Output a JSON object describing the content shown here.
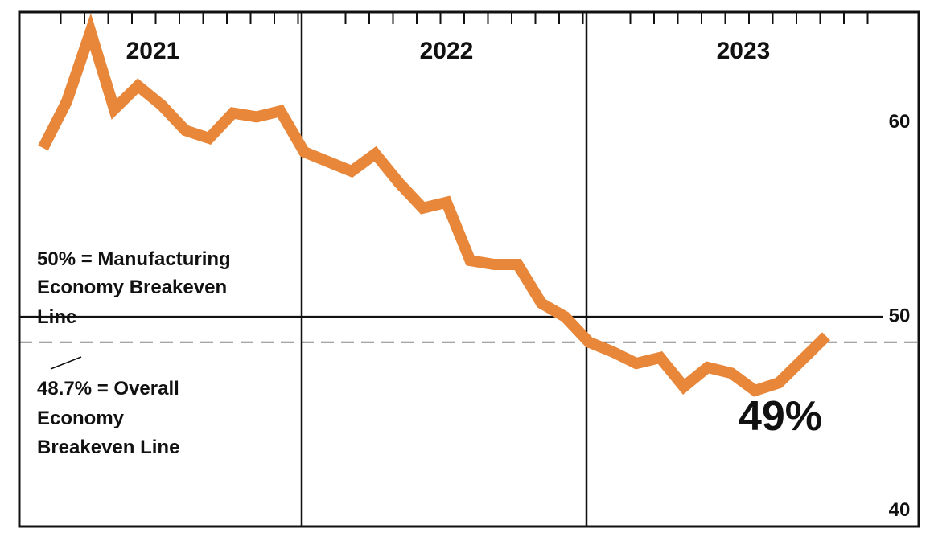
{
  "chart_data": {
    "type": "line",
    "year_labels": [
      "2021",
      "2022",
      "2023"
    ],
    "y_ticks": [
      {
        "value": 60,
        "label": "60"
      },
      {
        "value": 50,
        "label": "50"
      },
      {
        "value": 40,
        "label": "40"
      }
    ],
    "ylim": [
      39.2,
      65.7
    ],
    "xlim": [
      "2021-01",
      "2023-12"
    ],
    "grid": false,
    "series": [
      {
        "color": "#E8873A",
        "x": [
          "2021-01",
          "2021-02",
          "2021-03",
          "2021-04",
          "2021-05",
          "2021-06",
          "2021-07",
          "2021-08",
          "2021-09",
          "2021-10",
          "2021-11",
          "2021-12",
          "2022-01",
          "2022-02",
          "2022-03",
          "2022-04",
          "2022-05",
          "2022-06",
          "2022-07",
          "2022-08",
          "2022-09",
          "2022-10",
          "2022-11",
          "2022-12",
          "2023-01",
          "2023-02",
          "2023-03",
          "2023-04",
          "2023-05",
          "2023-06",
          "2023-07",
          "2023-08",
          "2023-09"
        ],
        "values": [
          58.7,
          61.1,
          64.7,
          60.7,
          61.9,
          60.9,
          59.6,
          59.2,
          60.5,
          60.3,
          60.6,
          58.5,
          58.0,
          57.5,
          58.4,
          56.9,
          55.6,
          55.9,
          52.9,
          52.7,
          52.7,
          50.7,
          50.0,
          48.7,
          48.2,
          47.6,
          47.9,
          46.4,
          47.4,
          47.1,
          46.2,
          46.6,
          47.8
        ]
      }
    ],
    "end_point": {
      "x": "2023-10",
      "y": 49.0,
      "label": "49%"
    },
    "reference_lines": [
      {
        "value": 50,
        "style": "solid",
        "label_lines": [
          "50% = Manufacturing",
          "Economy Breakeven",
          "Line"
        ]
      },
      {
        "value": 48.7,
        "style": "dashed",
        "label_lines": [
          "48.7% = Overall",
          "Economy",
          "Breakeven Line"
        ]
      }
    ]
  }
}
